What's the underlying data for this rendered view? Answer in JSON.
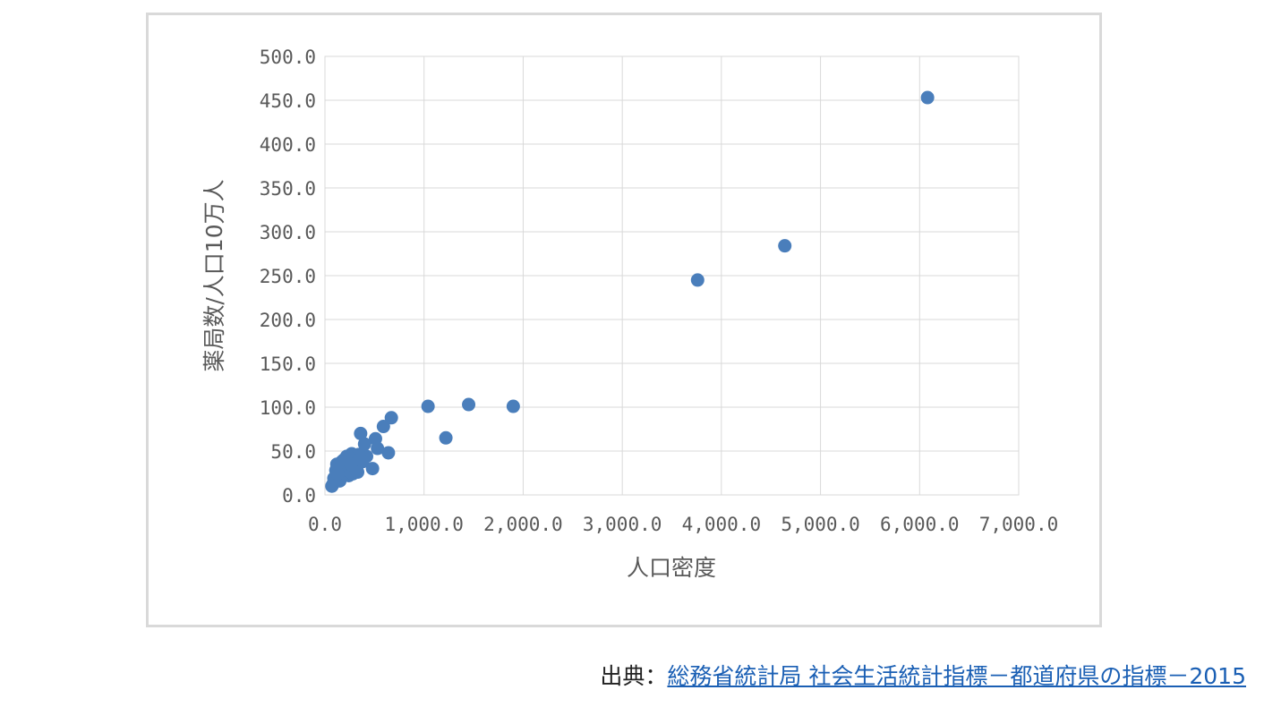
{
  "source": {
    "prefix": "出典：",
    "link_text": "総務省統計局 社会生活統計指標－都道府県の指標－2015"
  },
  "chart_data": {
    "type": "scatter",
    "title": "",
    "xlabel": "人口密度",
    "ylabel": "薬局数/人口10万人",
    "xlim": [
      0,
      7000
    ],
    "ylim": [
      0,
      500
    ],
    "x_ticks": [
      0,
      1000,
      2000,
      3000,
      4000,
      5000,
      6000,
      7000
    ],
    "x_tick_labels": [
      "0.0",
      "1,000.0",
      "2,000.0",
      "3,000.0",
      "4,000.0",
      "5,000.0",
      "6,000.0",
      "7,000.0"
    ],
    "y_ticks": [
      0,
      50,
      100,
      150,
      200,
      250,
      300,
      350,
      400,
      450,
      500
    ],
    "y_tick_labels": [
      "0.0",
      "50.0",
      "100.0",
      "150.0",
      "200.0",
      "250.0",
      "300.0",
      "350.0",
      "400.0",
      "450.0",
      "500.0"
    ],
    "grid": true,
    "legend": "none",
    "marker_color": "#4a7ebb",
    "series": [
      {
        "points": [
          [
            6080,
            453
          ],
          [
            4640,
            284
          ],
          [
            3760,
            245
          ],
          [
            1900,
            101
          ],
          [
            1450,
            103
          ],
          [
            1040,
            101
          ],
          [
            1220,
            65
          ],
          [
            670,
            88
          ],
          [
            590,
            78
          ],
          [
            640,
            48
          ],
          [
            510,
            64
          ],
          [
            530,
            53
          ],
          [
            480,
            30
          ],
          [
            360,
            70
          ],
          [
            400,
            58
          ],
          [
            420,
            44
          ],
          [
            380,
            38
          ],
          [
            340,
            46
          ],
          [
            300,
            40
          ],
          [
            270,
            47
          ],
          [
            250,
            42
          ],
          [
            230,
            36
          ],
          [
            210,
            30
          ],
          [
            290,
            33
          ],
          [
            320,
            30
          ],
          [
            260,
            26
          ],
          [
            240,
            22
          ],
          [
            200,
            28
          ],
          [
            180,
            24
          ],
          [
            160,
            33
          ],
          [
            140,
            20
          ],
          [
            120,
            35
          ],
          [
            110,
            28
          ],
          [
            100,
            15
          ],
          [
            90,
            19
          ],
          [
            80,
            12
          ],
          [
            70,
            10
          ],
          [
            150,
            16
          ],
          [
            130,
            24
          ],
          [
            310,
            34
          ],
          [
            280,
            24
          ],
          [
            220,
            44
          ],
          [
            190,
            40
          ],
          [
            350,
            40
          ],
          [
            330,
            26
          ],
          [
            170,
            38
          ],
          [
            260,
            35
          ]
        ]
      }
    ]
  }
}
